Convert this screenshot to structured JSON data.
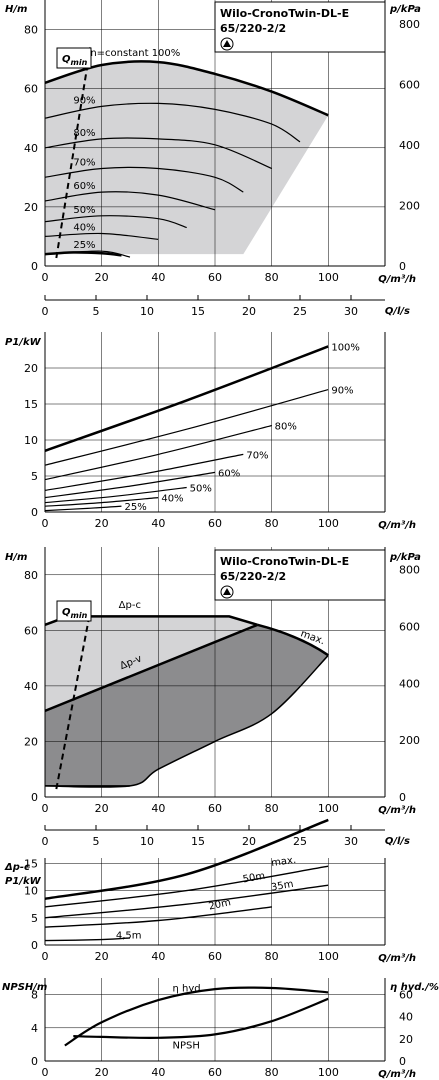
{
  "chart_data": [
    {
      "id": "head",
      "type": "line",
      "title": "Wilo-CronoTwin-DL-E",
      "subtitle": "65/220-2/2",
      "ylabel": "H/m",
      "ylabel_right": "p/kPa",
      "xlabel": "Q/m³/h",
      "xlabel_secondary": "Q/l/s",
      "qmin_label": "Q",
      "qmin_sub": "min",
      "xlim": [
        0,
        120
      ],
      "ylim": [
        0,
        90
      ],
      "ylim_right": [
        0,
        880
      ],
      "x_ticks": [
        0,
        20,
        40,
        60,
        80,
        100
      ],
      "y_ticks": [
        0,
        20,
        40,
        60,
        80
      ],
      "y_right_ticks": [
        0,
        200,
        400,
        600,
        800
      ],
      "x2_ticks": [
        0,
        5,
        10,
        15,
        20,
        25,
        30
      ],
      "x2_tick_positions_m3h": [
        0,
        18,
        36,
        54,
        72,
        90,
        108
      ],
      "grid": true,
      "series": [
        {
          "name": "n=constant 100%",
          "x": [
            0,
            20,
            40,
            60,
            80,
            100
          ],
          "y": [
            62,
            68,
            69,
            65,
            59,
            51
          ]
        },
        {
          "name": "90%",
          "x": [
            0,
            20,
            40,
            60,
            80,
            90
          ],
          "y": [
            50,
            54,
            55,
            53,
            48,
            42
          ]
        },
        {
          "name": "80%",
          "x": [
            0,
            20,
            40,
            60,
            80
          ],
          "y": [
            40,
            43,
            43,
            41,
            33
          ]
        },
        {
          "name": "70%",
          "x": [
            0,
            20,
            40,
            60,
            70
          ],
          "y": [
            30,
            33,
            33,
            30,
            25
          ]
        },
        {
          "name": "60%",
          "x": [
            0,
            20,
            40,
            60
          ],
          "y": [
            22,
            25,
            24,
            19
          ]
        },
        {
          "name": "50%",
          "x": [
            0,
            20,
            40,
            50
          ],
          "y": [
            15,
            17,
            16,
            13
          ]
        },
        {
          "name": "40%",
          "x": [
            0,
            20,
            40
          ],
          "y": [
            10,
            11,
            9
          ]
        },
        {
          "name": "25%",
          "x": [
            0,
            20,
            30
          ],
          "y": [
            4,
            5,
            3
          ]
        },
        {
          "name": "min",
          "x": [
            0,
            10,
            20,
            27
          ],
          "y": [
            4,
            4.6,
            4.3,
            3.6
          ]
        }
      ]
    },
    {
      "id": "power",
      "type": "line",
      "ylabel": "P1/kW",
      "xlabel": "Q/m³/h",
      "xlim": [
        0,
        120
      ],
      "ylim": [
        0,
        25
      ],
      "x_ticks": [
        0,
        20,
        40,
        60,
        80,
        100
      ],
      "y_ticks": [
        0,
        5,
        10,
        15,
        20
      ],
      "grid": true,
      "series": [
        {
          "name": "100%",
          "x": [
            0,
            50,
            100
          ],
          "y": [
            8.5,
            15.5,
            23
          ]
        },
        {
          "name": "90%",
          "x": [
            0,
            50,
            100
          ],
          "y": [
            6.5,
            11.5,
            17
          ]
        },
        {
          "name": "80%",
          "x": [
            0,
            40,
            80
          ],
          "y": [
            4.5,
            8,
            12
          ]
        },
        {
          "name": "70%",
          "x": [
            0,
            35,
            70
          ],
          "y": [
            3,
            5.3,
            8
          ]
        },
        {
          "name": "60%",
          "x": [
            0,
            30,
            60
          ],
          "y": [
            2,
            3.6,
            5.5
          ]
        },
        {
          "name": "50%",
          "x": [
            0,
            25,
            50
          ],
          "y": [
            1.3,
            2.2,
            3.4
          ]
        },
        {
          "name": "40%",
          "x": [
            0,
            20,
            40
          ],
          "y": [
            0.8,
            1.3,
            2
          ]
        },
        {
          "name": "25%",
          "x": [
            0,
            15,
            27
          ],
          "y": [
            0.2,
            0.5,
            0.8
          ]
        }
      ]
    },
    {
      "id": "control_head",
      "type": "area",
      "title": "Wilo-CronoTwin-DL-E",
      "subtitle": "65/220-2/2",
      "ylabel": "H/m",
      "ylabel_right": "p/kPa",
      "xlabel": "Q/m³/h",
      "xlabel_secondary": "Q/l/s",
      "qmin_label": "Q",
      "qmin_sub": "min",
      "xlim": [
        0,
        120
      ],
      "ylim": [
        0,
        90
      ],
      "ylim_right": [
        0,
        880
      ],
      "x_ticks": [
        0,
        20,
        40,
        60,
        80,
        100
      ],
      "y_ticks": [
        0,
        20,
        40,
        60,
        80
      ],
      "y_right_ticks": [
        0,
        200,
        400,
        600,
        800
      ],
      "x2_ticks": [
        0,
        5,
        10,
        15,
        20,
        25,
        30
      ],
      "x2_tick_positions_m3h": [
        0,
        18,
        36,
        54,
        72,
        90,
        108
      ],
      "grid": true,
      "labels": {
        "dp_c": "Δp-c",
        "dp_v": "Δp-v",
        "max": "max."
      },
      "series": [
        {
          "name": "Δp-c",
          "x": [
            0,
            8,
            65,
            75
          ],
          "y": [
            62,
            65,
            65,
            62
          ]
        },
        {
          "name": "Δp-v",
          "x": [
            0,
            75
          ],
          "y": [
            31,
            62
          ]
        },
        {
          "name": "max.",
          "x": [
            75,
            100
          ],
          "y": [
            62,
            51
          ]
        },
        {
          "name": "min",
          "x": [
            0,
            30,
            40,
            60,
            80,
            100
          ],
          "y": [
            4,
            4,
            10,
            20,
            30,
            51
          ]
        }
      ]
    },
    {
      "id": "control_power",
      "type": "line",
      "ylabel": "Δp-c",
      "ylabel2": "P1/kW",
      "xlabel": "Q/m³/h",
      "xlim": [
        0,
        120
      ],
      "ylim": [
        0,
        16
      ],
      "x_ticks": [
        0,
        20,
        40,
        60,
        80,
        100
      ],
      "y_ticks": [
        0,
        5,
        10,
        15
      ],
      "grid": true,
      "series": [
        {
          "name": "max.",
          "x": [
            0,
            50,
            100
          ],
          "y": [
            8.5,
            13,
            23
          ]
        },
        {
          "name": "50m",
          "x": [
            0,
            50,
            100
          ],
          "y": [
            7,
            10,
            14.5
          ]
        },
        {
          "name": "35m",
          "x": [
            0,
            50,
            100
          ],
          "y": [
            5,
            7.5,
            11
          ]
        },
        {
          "name": "20m",
          "x": [
            0,
            40,
            80
          ],
          "y": [
            3.3,
            4.5,
            7
          ]
        },
        {
          "name": "4,5m",
          "x": [
            0,
            20,
            30
          ],
          "y": [
            0.8,
            1,
            1.3
          ]
        }
      ]
    },
    {
      "id": "npsh",
      "type": "line",
      "ylabel": "NPSH/m",
      "ylabel_right": "η hyd./%",
      "xlabel": "Q/m³/h",
      "xlim": [
        0,
        120
      ],
      "ylim": [
        0,
        10
      ],
      "ylim_right": [
        0,
        75
      ],
      "x_ticks": [
        0,
        20,
        40,
        60,
        80,
        100
      ],
      "y_ticks": [
        0,
        4,
        8
      ],
      "y_right_ticks": [
        0,
        20,
        40,
        60
      ],
      "grid": true,
      "series": [
        {
          "name": "η hyd.",
          "axis": "right",
          "x": [
            7,
            20,
            40,
            60,
            80,
            100
          ],
          "y": [
            14,
            35,
            55,
            65,
            66,
            62
          ]
        },
        {
          "name": "NPSH",
          "axis": "left",
          "x": [
            10,
            20,
            40,
            60,
            80,
            100
          ],
          "y": [
            3,
            2.9,
            2.8,
            3.2,
            4.8,
            7.5
          ]
        }
      ]
    }
  ]
}
